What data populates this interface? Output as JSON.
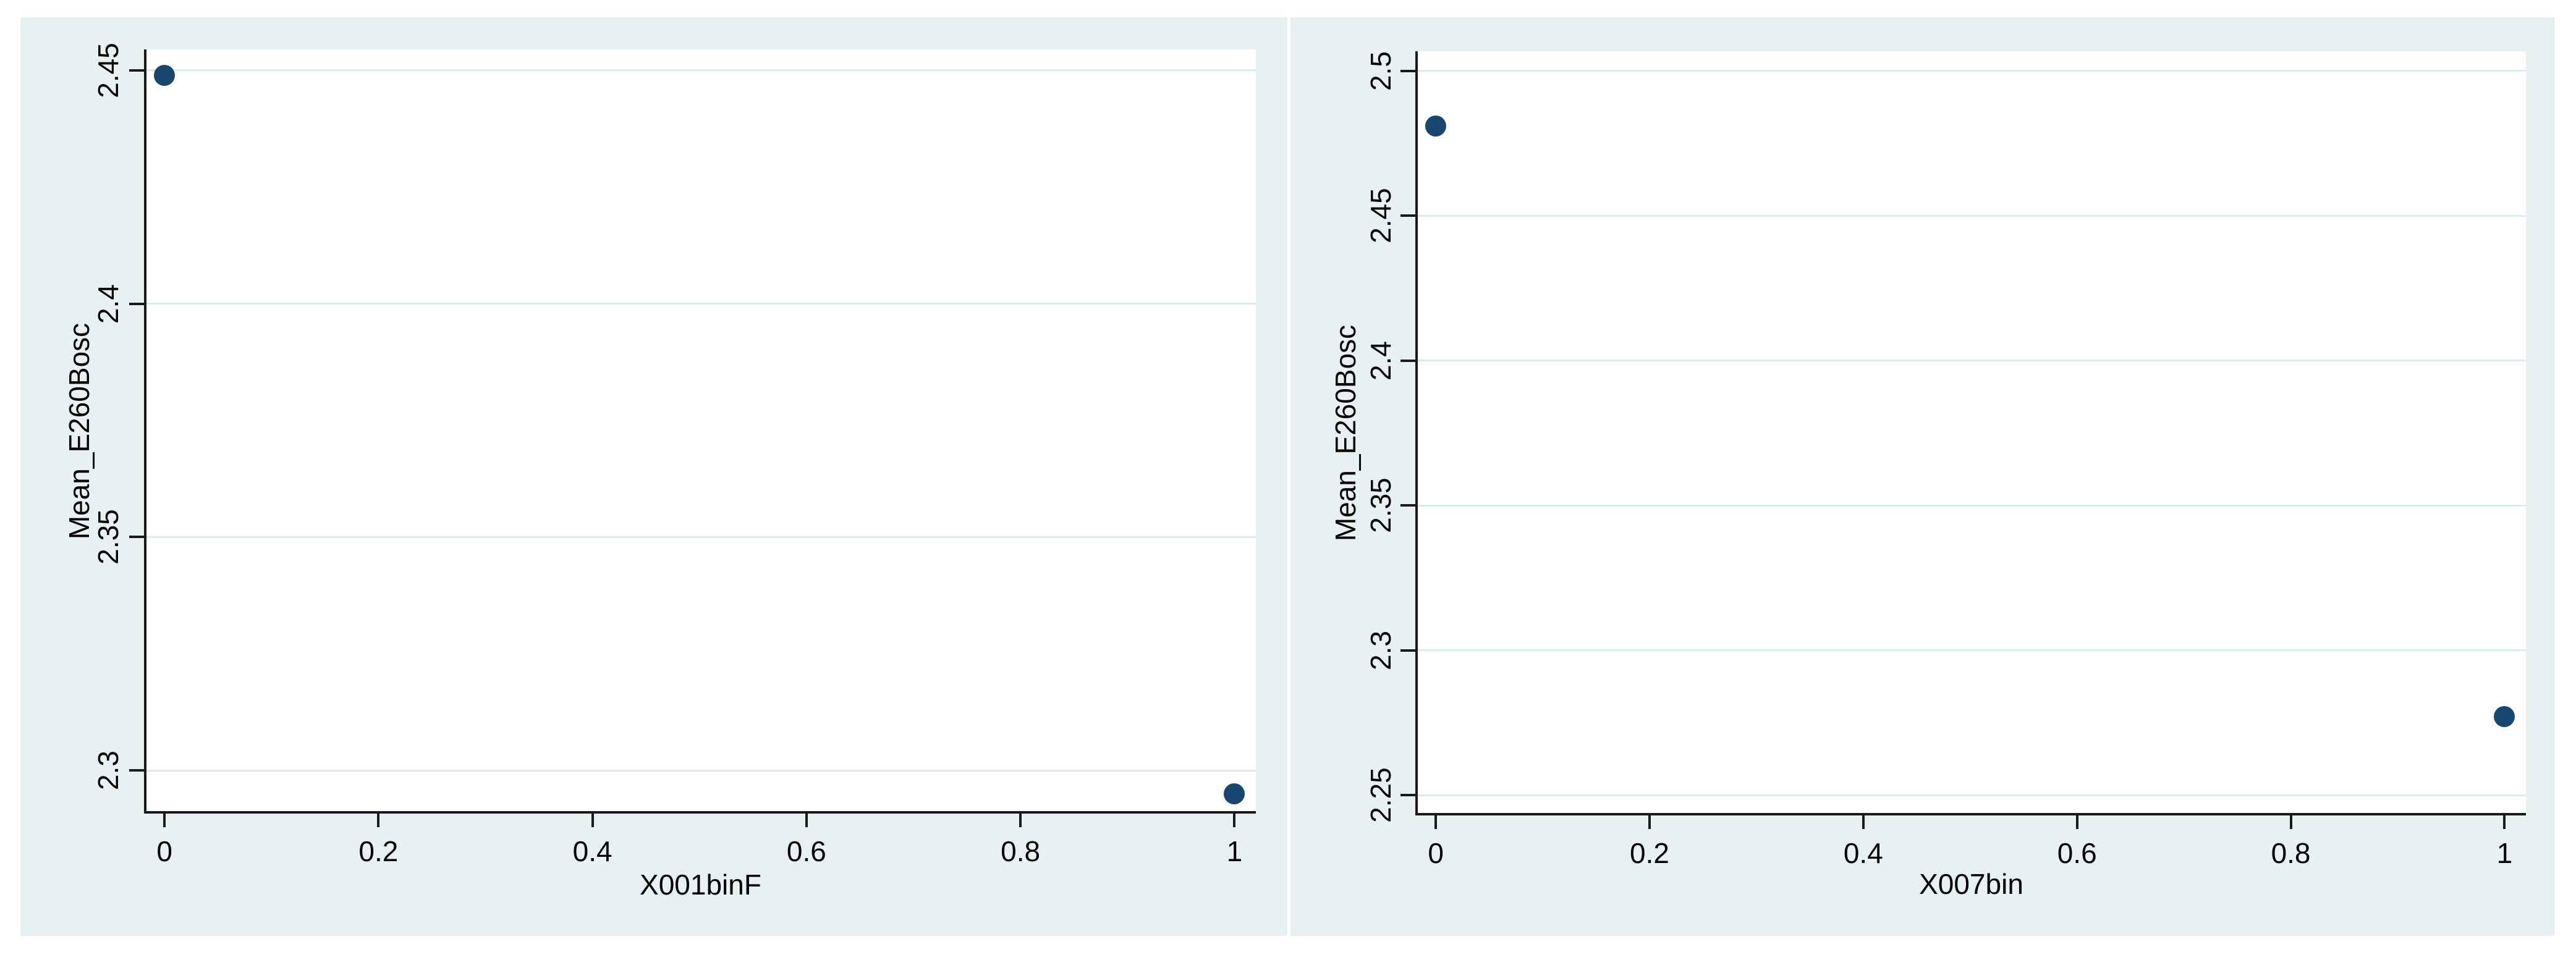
{
  "style": {
    "page_bg": "#ffffff",
    "panel_bg": "#e8f1f2",
    "plot_bg": "#ffffff",
    "grid_color": "#dfeaee",
    "axis_color": "#1a1a1a",
    "marker_color": "#17466e",
    "text_color": "#000000"
  },
  "chart_data": [
    {
      "type": "scatter",
      "title": "",
      "xlabel": "X001binF",
      "ylabel": "Mean_E260Bosc",
      "points": [
        {
          "x": 0,
          "y": 2.449
        },
        {
          "x": 1,
          "y": 2.295
        }
      ],
      "xticks": [
        {
          "v": 0,
          "label": "0"
        },
        {
          "v": 0.2,
          "label": "0.2"
        },
        {
          "v": 0.4,
          "label": "0.4"
        },
        {
          "v": 0.6,
          "label": "0.6"
        },
        {
          "v": 0.8,
          "label": "0.8"
        },
        {
          "v": 1,
          "label": "1"
        }
      ],
      "yticks": [
        {
          "v": 2.3,
          "label": "2.3"
        },
        {
          "v": 2.35,
          "label": "2.35"
        },
        {
          "v": 2.4,
          "label": "2.4"
        },
        {
          "v": 2.45,
          "label": "2.45"
        }
      ],
      "xlim": [
        -0.018,
        1.02
      ],
      "ylim": [
        2.291,
        2.4545
      ],
      "grid": "horizontal",
      "legend": "none"
    },
    {
      "type": "scatter",
      "title": "",
      "xlabel": "X007bin",
      "ylabel": "Mean_E260Bosc",
      "points": [
        {
          "x": 0,
          "y": 2.481
        },
        {
          "x": 1,
          "y": 2.277
        }
      ],
      "xticks": [
        {
          "v": 0,
          "label": "0"
        },
        {
          "v": 0.2,
          "label": "0.2"
        },
        {
          "v": 0.4,
          "label": "0.4"
        },
        {
          "v": 0.6,
          "label": "0.6"
        },
        {
          "v": 0.8,
          "label": "0.8"
        },
        {
          "v": 1,
          "label": "1"
        }
      ],
      "yticks": [
        {
          "v": 2.25,
          "label": "2.25"
        },
        {
          "v": 2.3,
          "label": "2.3"
        },
        {
          "v": 2.35,
          "label": "2.35"
        },
        {
          "v": 2.4,
          "label": "2.4"
        },
        {
          "v": 2.45,
          "label": "2.45"
        },
        {
          "v": 2.5,
          "label": "2.5"
        }
      ],
      "xlim": [
        -0.018,
        1.02
      ],
      "ylim": [
        2.2434,
        2.5068
      ],
      "grid": "horizontal",
      "legend": "none"
    }
  ]
}
